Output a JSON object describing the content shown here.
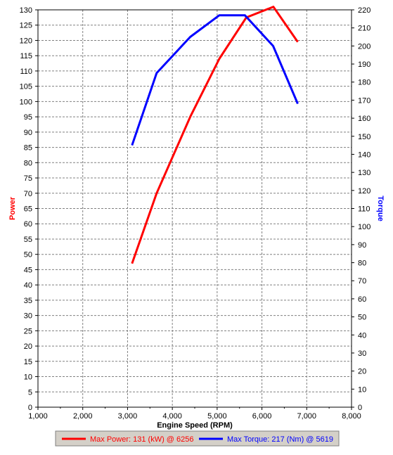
{
  "chart_data": {
    "type": "line",
    "xlabel": "Engine Speed (RPM)",
    "ylabel_left": "Power",
    "ylabel_right": "Torque",
    "xlim": [
      1000,
      8000
    ],
    "ylim_left": [
      0,
      130
    ],
    "ylim_right": [
      0,
      220
    ],
    "x_tick_labels": [
      "1,000",
      "2,000",
      "3,000",
      "4,000",
      "5,000",
      "6,000",
      "7,000",
      "8,000"
    ],
    "y_left_tick_labels": [
      "0",
      "5",
      "10",
      "15",
      "20",
      "25",
      "30",
      "35",
      "40",
      "45",
      "50",
      "55",
      "60",
      "65",
      "70",
      "75",
      "80",
      "85",
      "90",
      "95",
      "100",
      "105",
      "110",
      "115",
      "120",
      "125",
      "130"
    ],
    "y_right_tick_labels": [
      "0",
      "10",
      "20",
      "30",
      "40",
      "50",
      "60",
      "70",
      "80",
      "90",
      "100",
      "110",
      "120",
      "130",
      "140",
      "150",
      "160",
      "170",
      "180",
      "190",
      "200",
      "210",
      "220"
    ],
    "grid": true,
    "series": [
      {
        "name": "Max Power",
        "axis": "left",
        "color": "#ff0000",
        "x": [
          3100,
          3650,
          4400,
          5050,
          5650,
          6256,
          6800
        ],
        "y": [
          47,
          70,
          95,
          114,
          127.5,
          131,
          119.5
        ]
      },
      {
        "name": "Max Torque",
        "axis": "right",
        "color": "#0000ff",
        "x": [
          3100,
          3650,
          4400,
          5050,
          5619,
          6250,
          6800
        ],
        "y": [
          145,
          185,
          205,
          217,
          217,
          200,
          168
        ]
      }
    ]
  },
  "legend": {
    "items": [
      {
        "text": "Max Power: 131 (kW) @ 6256",
        "color": "#ff0000"
      },
      {
        "text": "Max Torque: 217 (Nm) @ 5619",
        "color": "#0000ff"
      }
    ]
  }
}
